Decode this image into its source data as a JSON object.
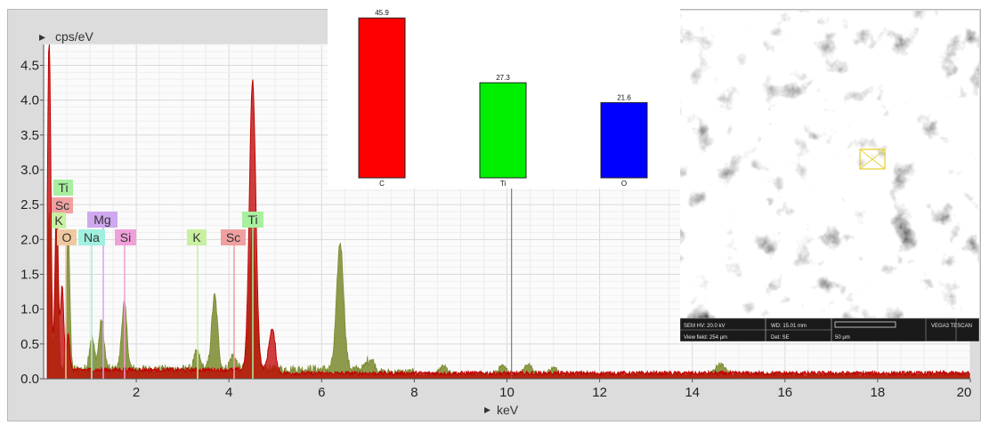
{
  "chart_data": [
    {
      "type": "area",
      "ylabel": "cps/eV",
      "xlabel": "keV",
      "xlim": [
        0,
        20
      ],
      "ylim": [
        0,
        4.8
      ],
      "x_ticks": [
        "2",
        "4",
        "6",
        "8",
        "10",
        "12",
        "14",
        "16",
        "18",
        "20"
      ],
      "y_ticks": [
        "0.0",
        "0.5",
        "1.0",
        "1.5",
        "2.0",
        "2.5",
        "3.0",
        "3.5",
        "4.0",
        "4.5"
      ],
      "grid": true,
      "series": [
        {
          "color": "#c00000",
          "peaks": [
            [
              0.12,
              4.8
            ],
            [
              0.28,
              2.4
            ],
            [
              0.4,
              1.2
            ],
            [
              0.53,
              0.5
            ],
            [
              4.51,
              4.15
            ],
            [
              4.93,
              0.58
            ]
          ]
        },
        {
          "color": "#7a8a2e",
          "peaks": [
            [
              0.12,
              2.2
            ],
            [
              0.28,
              2.0
            ],
            [
              0.53,
              2.05
            ],
            [
              1.04,
              0.45
            ],
            [
              1.25,
              0.7
            ],
            [
              1.74,
              0.95
            ],
            [
              3.31,
              0.25
            ],
            [
              3.69,
              1.05
            ],
            [
              4.09,
              0.2
            ],
            [
              4.51,
              2.1
            ],
            [
              6.4,
              1.82
            ],
            [
              7.06,
              0.2
            ],
            [
              8.63,
              0.12
            ],
            [
              9.9,
              0.12
            ],
            [
              10.45,
              0.15
            ],
            [
              11.0,
              0.1
            ],
            [
              14.6,
              0.15
            ]
          ]
        }
      ],
      "element_labels": [
        {
          "text": "Ti",
          "color": "#a8f0a0"
        },
        {
          "text": "Sc",
          "color": "#f0a0a0"
        },
        {
          "text": "K",
          "color": "#c8f0a0"
        },
        {
          "text": "Mg",
          "color": "#d0a8f0"
        },
        {
          "text": "O",
          "color": "#f0c8a0"
        },
        {
          "text": "Na",
          "color": "#a0f0e0"
        },
        {
          "text": "Si",
          "color": "#f0a0d8"
        },
        {
          "text": "K",
          "color": "#c8f0a0"
        },
        {
          "text": "Sc",
          "color": "#f0a0a0"
        },
        {
          "text": "Ti",
          "color": "#a8f0a0"
        }
      ]
    },
    {
      "type": "bar",
      "categories": [
        "C",
        "Ti",
        "O"
      ],
      "values": [
        45.9,
        27.3,
        21.6
      ],
      "value_labels": [
        "45.9",
        "27.3",
        "21.6"
      ],
      "colors": [
        "#ff0000",
        "#00ee00",
        "#0000ff"
      ],
      "ylim": [
        0,
        48
      ]
    }
  ],
  "sem_image": {
    "info": [
      "SEM HV: 20.0 kV",
      "WD: 15.01 mm",
      "VEGA3 TESCAN",
      "View field: 254 µm",
      "Det: SE",
      "50 µm"
    ]
  }
}
